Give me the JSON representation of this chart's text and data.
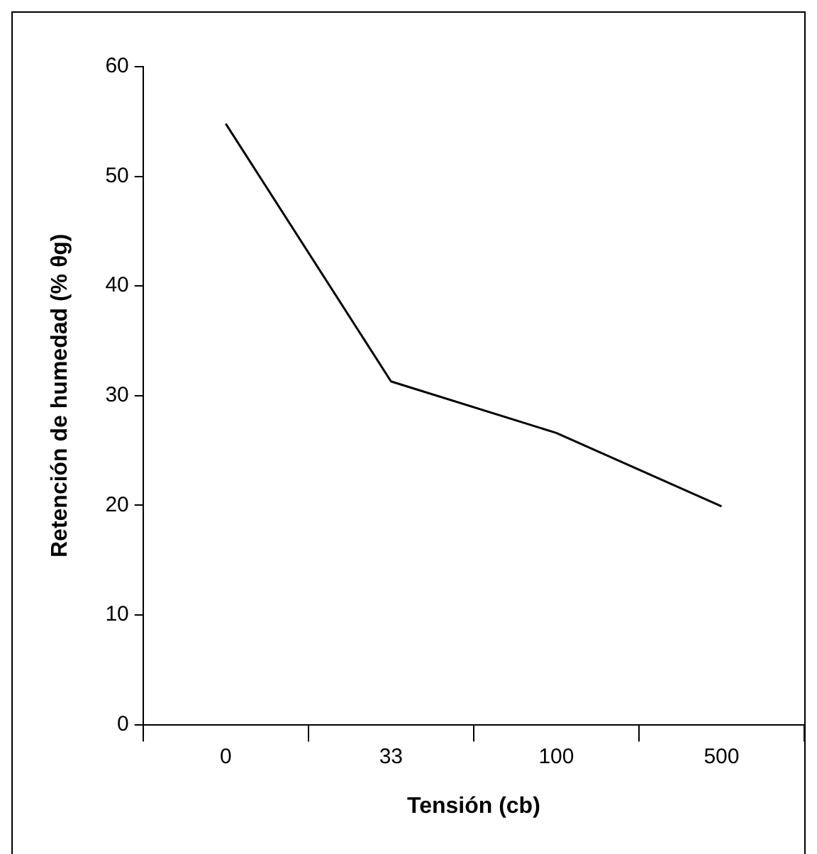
{
  "chart_data": {
    "type": "line",
    "xlabel": "Tensión (cb)",
    "ylabel": "Retención de humedad (% θg)",
    "categories": [
      "0",
      "33",
      "100",
      "500"
    ],
    "series": [
      {
        "color": "#000000",
        "values": [
          54.8,
          31.3,
          26.6,
          19.9
        ]
      }
    ],
    "ylim": [
      0,
      60
    ],
    "yticks": [
      0,
      10,
      20,
      30,
      40,
      50,
      60
    ],
    "grid": false,
    "legend": false,
    "marker": "none",
    "line_style": "solid"
  }
}
